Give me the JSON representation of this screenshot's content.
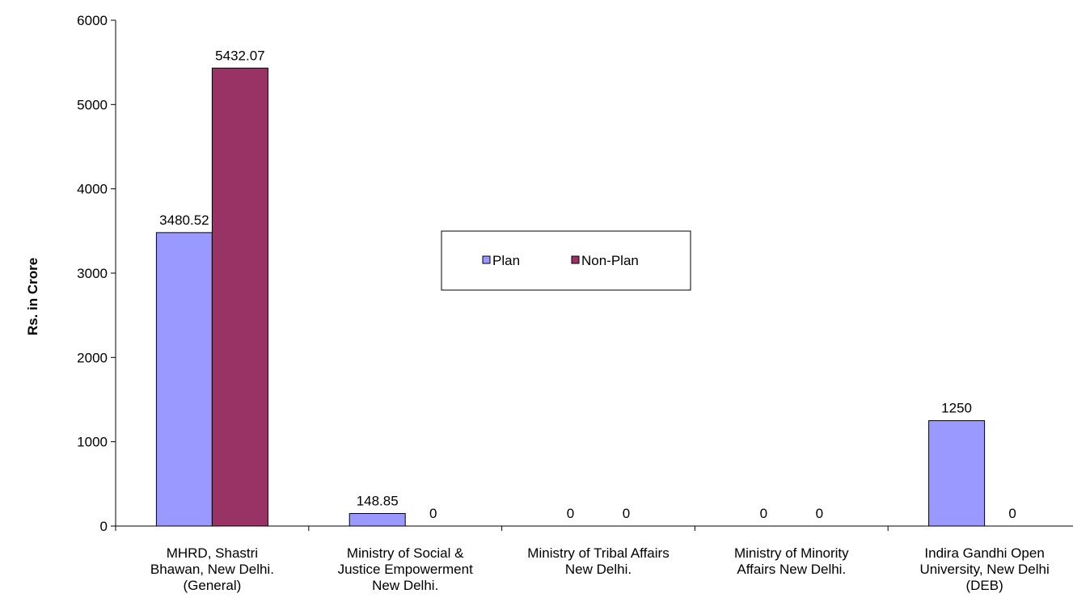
{
  "chart_data": {
    "type": "bar",
    "title": "",
    "xlabel": "",
    "ylabel": "Rs. in Crore",
    "ylim": [
      0,
      6000
    ],
    "yticks": [
      0,
      1000,
      2000,
      3000,
      4000,
      5000,
      6000
    ],
    "grid": false,
    "legend_position": "center",
    "categories": [
      [
        "MHRD,  Shastri",
        "Bhawan, New Delhi.",
        "(General)"
      ],
      [
        "Ministry of Social &",
        "Justice Empowerment",
        "New Delhi."
      ],
      [
        "Ministry of Tribal Affairs",
        "New Delhi."
      ],
      [
        "Ministry of Minority",
        "Affairs New Delhi."
      ],
      [
        "Indira Gandhi Open",
        "University, New Delhi",
        "(DEB)"
      ]
    ],
    "series": [
      {
        "name": "Plan",
        "color": "#9999ff",
        "values": [
          3480.52,
          148.85,
          0,
          0,
          1250
        ],
        "labels": [
          "3480.52",
          "148.85",
          "0",
          "0",
          "1250"
        ]
      },
      {
        "name": "Non-Plan",
        "color": "#993366",
        "values": [
          5432.07,
          0,
          0,
          0,
          0
        ],
        "labels": [
          "5432.07",
          "0",
          "0",
          "0",
          "0"
        ]
      }
    ]
  }
}
